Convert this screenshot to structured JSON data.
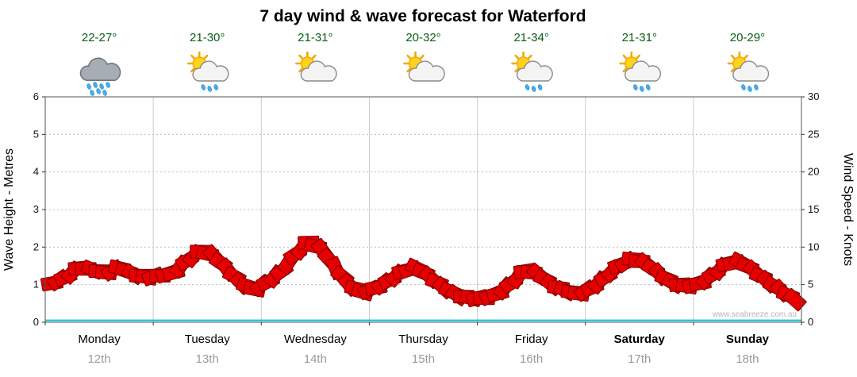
{
  "title": "7 day wind & wave forecast for Waterford",
  "watermark": "www.seabreeze.com.au",
  "axes": {
    "left_label": "Wave Height - Metres",
    "right_label": "Wind Speed - Knots",
    "left_ticks": [
      0,
      1,
      2,
      3,
      4,
      5,
      6
    ],
    "right_ticks": [
      0,
      5,
      10,
      15,
      20,
      25,
      30
    ]
  },
  "days": [
    {
      "name": "Monday",
      "date": "12th",
      "temp": "22-27°",
      "icon": "rain-cloud",
      "bold": false
    },
    {
      "name": "Tuesday",
      "date": "13th",
      "temp": "21-30°",
      "icon": "sun-cloud-rain",
      "bold": false
    },
    {
      "name": "Wednesday",
      "date": "14th",
      "temp": "21-31°",
      "icon": "sun-cloud",
      "bold": false
    },
    {
      "name": "Thursday",
      "date": "15th",
      "temp": "20-32°",
      "icon": "sun-cloud",
      "bold": false
    },
    {
      "name": "Friday",
      "date": "16th",
      "temp": "21-34°",
      "icon": "sun-cloud-rain",
      "bold": false
    },
    {
      "name": "Saturday",
      "date": "17th",
      "temp": "21-31°",
      "icon": "sun-cloud-rain",
      "bold": true
    },
    {
      "name": "Sunday",
      "date": "18th",
      "temp": "20-29°",
      "icon": "sun-cloud-rain",
      "bold": true
    }
  ],
  "chart_data": {
    "type": "line",
    "title": "7 day wind & wave forecast for Waterford",
    "x_unit": "hours",
    "x_range": [
      0,
      168
    ],
    "day_categories": [
      "Monday 12th",
      "Tuesday 13th",
      "Wednesday 14th",
      "Thursday 15th",
      "Friday 16th",
      "Saturday 17th",
      "Sunday 18th"
    ],
    "left_axis": {
      "label": "Wave Height - Metres",
      "range": [
        0,
        6
      ],
      "ticks": [
        0,
        1,
        2,
        3,
        4,
        5,
        6
      ]
    },
    "right_axis": {
      "label": "Wind Speed - Knots",
      "range": [
        0,
        30
      ],
      "ticks": [
        0,
        5,
        10,
        15,
        20,
        25,
        30
      ]
    },
    "grid": {
      "h_dotted_at_metres": [
        1,
        2,
        3,
        4,
        5
      ],
      "v_lines_at_day_boundaries": true
    },
    "series": [
      {
        "name": "Wind Speed",
        "axis": "right",
        "unit": "knots",
        "color": "#e60000",
        "style": "wind-arrows",
        "x_hours": [
          1.5,
          4.5,
          7.5,
          10.5,
          13.5,
          16.5,
          19.5,
          22.5,
          25.5,
          28.5,
          31.5,
          34.5,
          37.5,
          40.5,
          43.5,
          46.5,
          49.5,
          52.5,
          55.5,
          58.5,
          61.5,
          64.5,
          67.5,
          70.5,
          73.5,
          76.5,
          79.5,
          82.5,
          85.5,
          88.5,
          91.5,
          94.5,
          97.5,
          100.5,
          103.5,
          106.5,
          109.5,
          112.5,
          115.5,
          118.5,
          121.5,
          124.5,
          127.5,
          130.5,
          133.5,
          136.5,
          139.5,
          142.5,
          145.5,
          148.5,
          151.5,
          154.5,
          157.5,
          160.5,
          163.5,
          166.5
        ],
        "values": [
          5.2,
          6.0,
          7.2,
          7.0,
          6.6,
          7.2,
          6.4,
          6.0,
          6.2,
          6.6,
          8.2,
          9.4,
          8.8,
          7.0,
          5.2,
          4.4,
          5.4,
          6.8,
          9.0,
          10.6,
          9.6,
          7.2,
          5.0,
          4.0,
          4.6,
          5.6,
          6.8,
          7.2,
          6.0,
          4.6,
          3.6,
          3.2,
          3.2,
          3.8,
          5.2,
          6.8,
          6.4,
          5.0,
          4.2,
          3.8,
          4.6,
          6.0,
          7.6,
          8.4,
          7.8,
          6.4,
          5.2,
          4.8,
          5.2,
          6.4,
          7.8,
          8.0,
          6.8,
          5.4,
          4.2,
          3.0
        ]
      },
      {
        "name": "Wave Height",
        "axis": "left",
        "unit": "m",
        "color": "#00c8d4",
        "style": "line",
        "x_hours": [
          0,
          168
        ],
        "values": [
          0.05,
          0.05
        ]
      }
    ],
    "legend": "none"
  }
}
